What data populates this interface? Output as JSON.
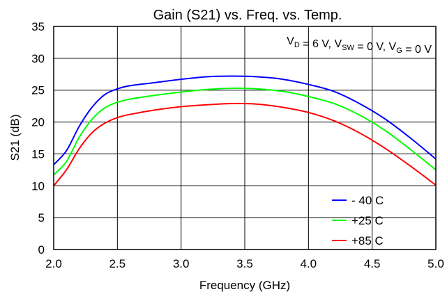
{
  "chart_data": {
    "type": "line",
    "title": "Gain (S21) vs. Freq. vs. Temp.",
    "xlabel": "Frequency (GHz)",
    "ylabel": "S21 (dB)",
    "xlim": [
      2.0,
      5.0
    ],
    "ylim": [
      0,
      35
    ],
    "x_ticks": [
      "2.0",
      "2.5",
      "3.0",
      "3.5",
      "4.0",
      "4.5",
      "5.0"
    ],
    "y_ticks": [
      "0",
      "5",
      "10",
      "15",
      "20",
      "25",
      "30",
      "35"
    ],
    "grid": true,
    "legend_position": "bottom-right",
    "annotation": {
      "vd_main": "V",
      "vd_sub": "D",
      "vd_rest": " = 6 V, ",
      "vsw_main": "V",
      "vsw_sub": "SW",
      "vsw_rest": " = 0 V, ",
      "vg_main": "V",
      "vg_sub": "G",
      "vg_rest": " = 0 V"
    },
    "series": [
      {
        "name": "- 40 C",
        "color": "#0000ff",
        "x": [
          2.0,
          2.1,
          2.2,
          2.3,
          2.4,
          2.5,
          2.6,
          2.8,
          3.0,
          3.2,
          3.4,
          3.6,
          3.8,
          4.0,
          4.2,
          4.4,
          4.6,
          4.8,
          5.0
        ],
        "y": [
          13.3,
          15.5,
          19.3,
          22.3,
          24.3,
          25.2,
          25.7,
          26.2,
          26.7,
          27.1,
          27.2,
          27.1,
          26.7,
          25.9,
          24.8,
          22.9,
          20.5,
          17.5,
          14.2
        ]
      },
      {
        "name": "+25 C",
        "color": "#00ff00",
        "x": [
          2.0,
          2.1,
          2.2,
          2.3,
          2.4,
          2.5,
          2.6,
          2.8,
          3.0,
          3.2,
          3.4,
          3.6,
          3.8,
          4.0,
          4.2,
          4.4,
          4.6,
          4.8,
          5.0
        ],
        "y": [
          11.7,
          13.8,
          17.6,
          20.4,
          22.2,
          23.1,
          23.6,
          24.2,
          24.7,
          25.1,
          25.3,
          25.2,
          24.8,
          24.0,
          22.9,
          21.1,
          18.7,
          15.7,
          12.5
        ]
      },
      {
        "name": "+85 C",
        "color": "#ff0000",
        "x": [
          2.0,
          2.1,
          2.2,
          2.3,
          2.4,
          2.5,
          2.6,
          2.8,
          3.0,
          3.2,
          3.4,
          3.6,
          3.8,
          4.0,
          4.2,
          4.4,
          4.6,
          4.8,
          5.0
        ],
        "y": [
          10.0,
          12.5,
          15.8,
          18.3,
          19.8,
          20.7,
          21.2,
          21.9,
          22.4,
          22.7,
          22.9,
          22.8,
          22.3,
          21.5,
          20.2,
          18.3,
          15.9,
          13.1,
          10.1
        ]
      }
    ]
  }
}
